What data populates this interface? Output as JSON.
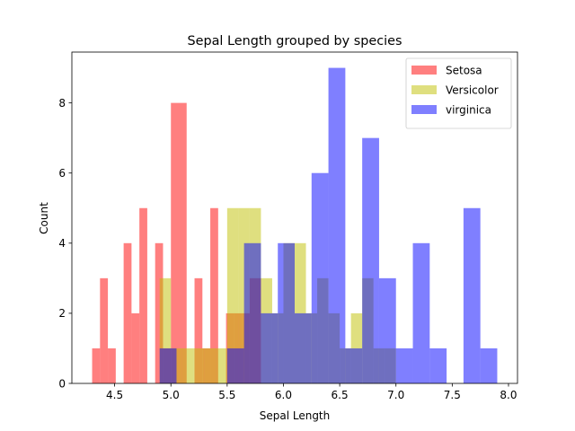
{
  "chart_data": {
    "type": "bar",
    "title": "Sepal Length grouped by species",
    "xlabel": "Sepal Length",
    "ylabel": "Count",
    "xlim": [
      4.12,
      8.08
    ],
    "ylim": [
      0,
      9.45
    ],
    "xticks": [
      4.5,
      5.0,
      5.5,
      6.0,
      6.5,
      7.0,
      7.5,
      8.0
    ],
    "xtick_labels": [
      "4.5",
      "5.0",
      "5.5",
      "6.0",
      "6.5",
      "7.0",
      "7.5",
      "8.0"
    ],
    "yticks": [
      0,
      2,
      4,
      6,
      8
    ],
    "ytick_labels": [
      "0",
      "2",
      "4",
      "6",
      "8"
    ],
    "grid": false,
    "legend_position": "top-right",
    "series": [
      {
        "name": "Setosa",
        "color": "#ff0000",
        "alpha": 0.5,
        "bins": [
          {
            "x0": 4.3,
            "x1": 4.37,
            "count": 1
          },
          {
            "x0": 4.37,
            "x1": 4.44,
            "count": 3
          },
          {
            "x0": 4.44,
            "x1": 4.51,
            "count": 1
          },
          {
            "x0": 4.58,
            "x1": 4.65,
            "count": 4
          },
          {
            "x0": 4.65,
            "x1": 4.72,
            "count": 2
          },
          {
            "x0": 4.72,
            "x1": 4.79,
            "count": 5
          },
          {
            "x0": 4.86,
            "x1": 4.93,
            "count": 4
          },
          {
            "x0": 4.93,
            "x1": 5.0,
            "count": 1
          },
          {
            "x0": 5.0,
            "x1": 5.07,
            "count": 8
          },
          {
            "x0": 5.07,
            "x1": 5.14,
            "count": 8
          },
          {
            "x0": 5.21,
            "x1": 5.28,
            "count": 3
          },
          {
            "x0": 5.28,
            "x1": 5.35,
            "count": 1
          },
          {
            "x0": 5.35,
            "x1": 5.42,
            "count": 5
          },
          {
            "x0": 5.49,
            "x1": 5.56,
            "count": 2
          },
          {
            "x0": 5.56,
            "x1": 5.63,
            "count": 2
          },
          {
            "x0": 5.63,
            "x1": 5.7,
            "count": 2
          },
          {
            "x0": 5.7,
            "x1": 5.8,
            "count": 3
          }
        ]
      },
      {
        "name": "Versicolor",
        "color": "#bfbf00",
        "alpha": 0.5,
        "bins": [
          {
            "x0": 4.9,
            "x1": 5.0,
            "count": 3
          },
          {
            "x0": 5.0,
            "x1": 5.1,
            "count": 1
          },
          {
            "x0": 5.1,
            "x1": 5.2,
            "count": 1
          },
          {
            "x0": 5.2,
            "x1": 5.3,
            "count": 1
          },
          {
            "x0": 5.3,
            "x1": 5.4,
            "count": 1
          },
          {
            "x0": 5.4,
            "x1": 5.5,
            "count": 1
          },
          {
            "x0": 5.5,
            "x1": 5.6,
            "count": 5
          },
          {
            "x0": 5.6,
            "x1": 5.7,
            "count": 5
          },
          {
            "x0": 5.7,
            "x1": 5.8,
            "count": 5
          },
          {
            "x0": 5.8,
            "x1": 5.9,
            "count": 3
          },
          {
            "x0": 5.9,
            "x1": 6.0,
            "count": 2
          },
          {
            "x0": 6.0,
            "x1": 6.1,
            "count": 4
          },
          {
            "x0": 6.1,
            "x1": 6.2,
            "count": 4
          },
          {
            "x0": 6.2,
            "x1": 6.3,
            "count": 2
          },
          {
            "x0": 6.3,
            "x1": 6.4,
            "count": 3
          },
          {
            "x0": 6.4,
            "x1": 6.5,
            "count": 2
          },
          {
            "x0": 6.5,
            "x1": 6.6,
            "count": 1
          },
          {
            "x0": 6.6,
            "x1": 6.7,
            "count": 2
          },
          {
            "x0": 6.7,
            "x1": 6.8,
            "count": 3
          },
          {
            "x0": 6.8,
            "x1": 6.9,
            "count": 1
          },
          {
            "x0": 6.9,
            "x1": 7.0,
            "count": 1
          }
        ]
      },
      {
        "name": "virginica",
        "color": "#0000ff",
        "alpha": 0.5,
        "bins": [
          {
            "x0": 4.9,
            "x1": 5.05,
            "count": 1
          },
          {
            "x0": 5.5,
            "x1": 5.65,
            "count": 1
          },
          {
            "x0": 5.65,
            "x1": 5.8,
            "count": 4
          },
          {
            "x0": 5.8,
            "x1": 5.95,
            "count": 2
          },
          {
            "x0": 5.95,
            "x1": 6.1,
            "count": 4
          },
          {
            "x0": 6.1,
            "x1": 6.25,
            "count": 2
          },
          {
            "x0": 6.25,
            "x1": 6.4,
            "count": 6
          },
          {
            "x0": 6.4,
            "x1": 6.55,
            "count": 9
          },
          {
            "x0": 6.55,
            "x1": 6.7,
            "count": 1
          },
          {
            "x0": 6.7,
            "x1": 6.85,
            "count": 7
          },
          {
            "x0": 6.85,
            "x1": 7.0,
            "count": 3
          },
          {
            "x0": 7.0,
            "x1": 7.15,
            "count": 1
          },
          {
            "x0": 7.15,
            "x1": 7.3,
            "count": 4
          },
          {
            "x0": 7.3,
            "x1": 7.45,
            "count": 1
          },
          {
            "x0": 7.6,
            "x1": 7.75,
            "count": 5
          },
          {
            "x0": 7.75,
            "x1": 7.9,
            "count": 1
          }
        ]
      }
    ]
  }
}
